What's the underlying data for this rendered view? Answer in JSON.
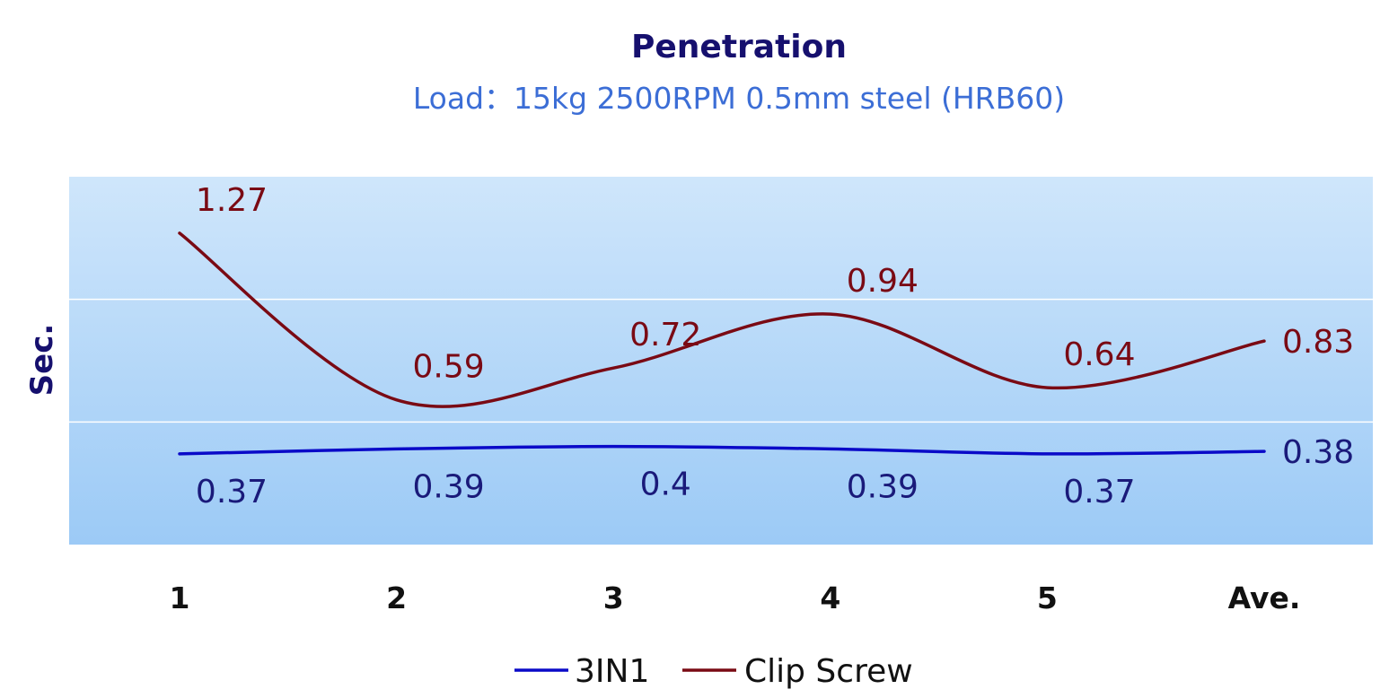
{
  "chart_data": {
    "type": "line",
    "title": "Penetration",
    "subtitle": "Load：15kg  2500RPM  0.5mm steel  (HRB60)",
    "xlabel": "",
    "ylabel": "Sec.",
    "categories": [
      "1",
      "2",
      "3",
      "4",
      "5",
      "Ave."
    ],
    "ylim": [
      0,
      1.5
    ],
    "grid": true,
    "legend_position": "bottom",
    "series": [
      {
        "name": "3IN1",
        "color": "#0a0ac8",
        "label_color": "#1a1a7a",
        "values": [
          0.37,
          0.39,
          0.4,
          0.39,
          0.37,
          0.38
        ]
      },
      {
        "name": "Clip Screw",
        "color": "#7a0a14",
        "label_color": "#7a0a14",
        "values": [
          1.27,
          0.59,
          0.72,
          0.94,
          0.64,
          0.83
        ]
      }
    ]
  },
  "colors": {
    "title": "#16106e",
    "subtitle": "#3c6ed6",
    "ylabel": "#16106e",
    "tick": "#111111",
    "plot_top": "#cfe6fb",
    "plot_bottom": "#9ccaf6"
  }
}
